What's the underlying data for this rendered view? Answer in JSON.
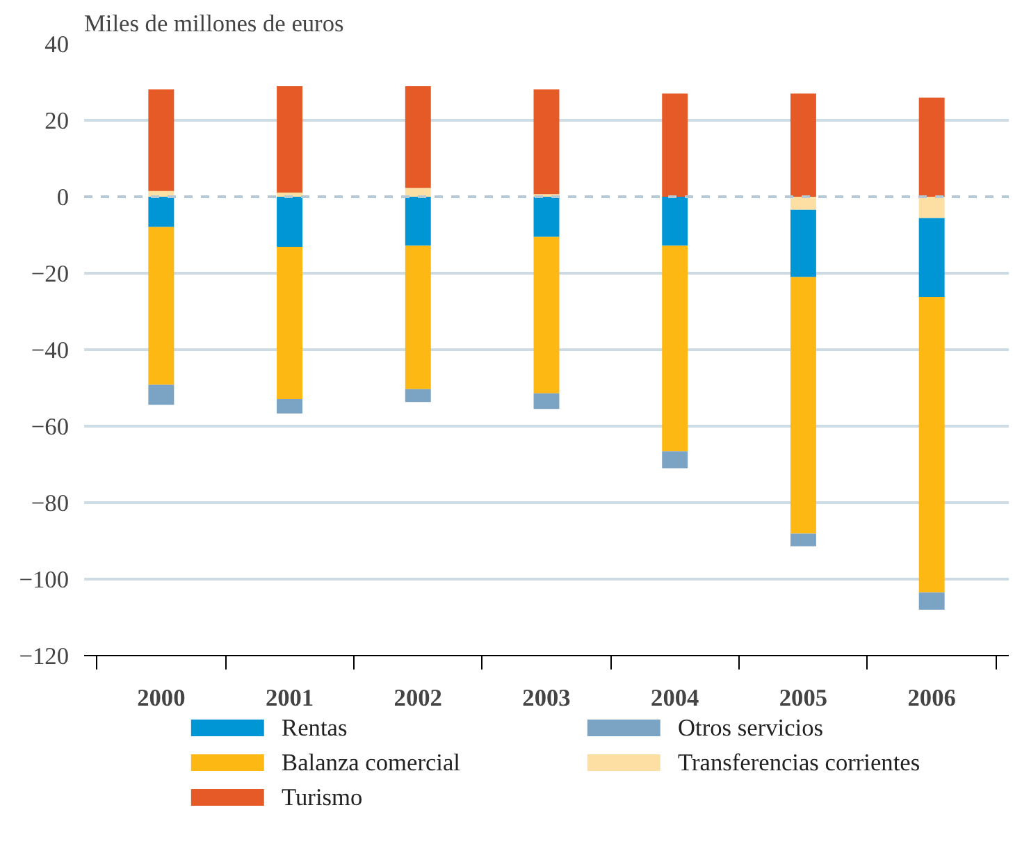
{
  "chart_data": {
    "type": "bar",
    "stacked": true,
    "ylabel": "Miles de millones de euros",
    "categories": [
      "2000",
      "2001",
      "2002",
      "2003",
      "2004",
      "2005",
      "2006"
    ],
    "series": [
      {
        "name": "Transferencias corrientes",
        "color": "#fddea3",
        "values": [
          1.5,
          1.1,
          2.3,
          0.7,
          0,
          -3.4,
          -5.6
        ]
      },
      {
        "name": "Rentas",
        "color": "#0096d6",
        "values": [
          -7.9,
          -13.1,
          -12.8,
          -10.5,
          -12.8,
          -17.6,
          -20.6
        ]
      },
      {
        "name": "Balanza comercial",
        "color": "#fdb813",
        "values": [
          -41.3,
          -39.8,
          -37.5,
          -40.9,
          -53.8,
          -67.1,
          -77.3
        ]
      },
      {
        "name": "Turismo",
        "color": "#e55a27",
        "values": [
          26.6,
          27.8,
          26.6,
          27.4,
          27,
          27,
          25.9
        ]
      },
      {
        "name": "Otros servicios",
        "color": "#7ba3c4",
        "values": [
          -5.2,
          -3.8,
          -3.4,
          -4.1,
          -4.4,
          -3.3,
          -4.5
        ]
      }
    ],
    "ylim": [
      -120,
      40
    ],
    "yticks": [
      -120,
      -100,
      -80,
      -60,
      -40,
      -20,
      0,
      20,
      40
    ],
    "grid": "y",
    "legend": "bottom",
    "ref_lines": [
      {
        "axis": "y",
        "value": 0,
        "line_style": "dashed",
        "color": "#b4c8d6"
      }
    ]
  }
}
